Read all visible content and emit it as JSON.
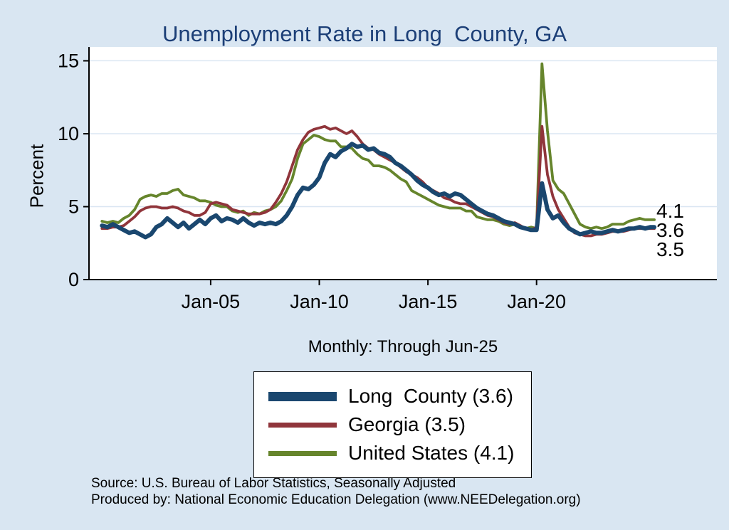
{
  "page": {
    "title": "Unemployment Rate in Long  County, GA",
    "subtitle": "Monthly: Through Jun-25",
    "source_line1": "Source: U.S. Bureau of Labor Statistics, Seasonally Adjusted",
    "source_line2": "Produced by: National Economic Education Delegation (www.NEEDelegation.org)",
    "colors": {
      "background": "#d9e6f2",
      "title": "#1c3f77",
      "plot_background": "#ffffff",
      "gridline": "#d9e5f2",
      "axis": "#000000"
    }
  },
  "chart_data": {
    "type": "line",
    "title": "Unemployment Rate in Long  County, GA",
    "xlabel": "",
    "ylabel": "Percent",
    "x_axis": {
      "ticks": [
        2005,
        2010,
        2015,
        2020
      ],
      "tick_labels": [
        "Jan-05",
        "Jan-10",
        "Jan-15",
        "Jan-20"
      ],
      "range": [
        1999.4,
        2028.3
      ]
    },
    "y_axis": {
      "ticks": [
        0,
        5,
        10,
        15
      ],
      "tick_labels": [
        "0",
        "5",
        "10",
        "15"
      ],
      "range": [
        0,
        15.95
      ],
      "gridlines": [
        5,
        10,
        15
      ]
    },
    "x": [
      2000.0,
      2000.25,
      2000.5,
      2000.75,
      2001.0,
      2001.25,
      2001.5,
      2001.75,
      2002.0,
      2002.25,
      2002.5,
      2002.75,
      2003.0,
      2003.25,
      2003.5,
      2003.75,
      2004.0,
      2004.25,
      2004.5,
      2004.75,
      2005.0,
      2005.25,
      2005.5,
      2005.75,
      2006.0,
      2006.25,
      2006.5,
      2006.75,
      2007.0,
      2007.25,
      2007.5,
      2007.75,
      2008.0,
      2008.25,
      2008.5,
      2008.75,
      2009.0,
      2009.25,
      2009.5,
      2009.75,
      2010.0,
      2010.25,
      2010.5,
      2010.75,
      2011.0,
      2011.25,
      2011.5,
      2011.75,
      2012.0,
      2012.25,
      2012.5,
      2012.75,
      2013.0,
      2013.25,
      2013.5,
      2013.75,
      2014.0,
      2014.25,
      2014.5,
      2014.75,
      2015.0,
      2015.25,
      2015.5,
      2015.75,
      2016.0,
      2016.25,
      2016.5,
      2016.75,
      2017.0,
      2017.25,
      2017.5,
      2017.75,
      2018.0,
      2018.25,
      2018.5,
      2018.75,
      2019.0,
      2019.25,
      2019.5,
      2019.75,
      2020.0,
      2020.25,
      2020.5,
      2020.75,
      2021.0,
      2021.25,
      2021.5,
      2021.75,
      2022.0,
      2022.25,
      2022.5,
      2022.75,
      2023.0,
      2023.25,
      2023.5,
      2023.75,
      2024.0,
      2024.25,
      2024.5,
      2024.75,
      2025.0,
      2025.25,
      2025.42
    ],
    "series": [
      {
        "name": "Long  County",
        "legend_label": "Long  County (3.6)",
        "last_value": 3.6,
        "color": "#1a476f",
        "values": [
          3.7,
          3.6,
          3.8,
          3.6,
          3.4,
          3.2,
          3.3,
          3.1,
          2.9,
          3.1,
          3.6,
          3.8,
          4.2,
          3.9,
          3.6,
          3.9,
          3.5,
          3.8,
          4.1,
          3.8,
          4.2,
          4.4,
          4.0,
          4.2,
          4.1,
          3.9,
          4.2,
          3.9,
          3.7,
          3.9,
          3.8,
          3.9,
          3.8,
          4.0,
          4.4,
          5.0,
          5.8,
          6.3,
          6.2,
          6.5,
          7.0,
          8.0,
          8.6,
          8.4,
          8.8,
          9.0,
          9.3,
          9.1,
          9.2,
          8.9,
          9.0,
          8.7,
          8.6,
          8.4,
          8.0,
          7.8,
          7.5,
          7.2,
          6.8,
          6.5,
          6.3,
          6.0,
          5.8,
          5.9,
          5.7,
          5.9,
          5.8,
          5.5,
          5.2,
          4.9,
          4.7,
          4.5,
          4.4,
          4.2,
          4.0,
          3.9,
          3.8,
          3.6,
          3.5,
          3.4,
          3.4,
          6.6,
          4.8,
          4.2,
          4.4,
          3.9,
          3.5,
          3.3,
          3.1,
          3.2,
          3.3,
          3.2,
          3.2,
          3.3,
          3.4,
          3.3,
          3.4,
          3.5,
          3.5,
          3.6,
          3.5,
          3.6,
          3.6
        ]
      },
      {
        "name": "Georgia",
        "legend_label": "Georgia (3.5)",
        "last_value": 3.5,
        "color": "#90353b",
        "values": [
          3.5,
          3.5,
          3.6,
          3.6,
          3.7,
          4.0,
          4.3,
          4.7,
          4.9,
          5.0,
          5.0,
          4.9,
          4.9,
          5.0,
          4.9,
          4.7,
          4.6,
          4.4,
          4.4,
          4.6,
          5.2,
          5.3,
          5.2,
          5.1,
          4.8,
          4.7,
          4.6,
          4.5,
          4.5,
          4.5,
          4.6,
          4.8,
          5.3,
          5.9,
          6.7,
          7.8,
          8.9,
          9.6,
          10.1,
          10.3,
          10.4,
          10.5,
          10.3,
          10.4,
          10.2,
          10.0,
          10.2,
          9.8,
          9.3,
          9.0,
          8.9,
          8.6,
          8.4,
          8.2,
          8.0,
          7.7,
          7.4,
          7.2,
          7.0,
          6.7,
          6.3,
          6.1,
          5.9,
          5.6,
          5.5,
          5.3,
          5.2,
          5.2,
          5.0,
          4.8,
          4.6,
          4.4,
          4.3,
          4.1,
          3.9,
          3.8,
          3.9,
          3.7,
          3.5,
          3.4,
          3.6,
          10.5,
          7.2,
          5.7,
          4.8,
          4.2,
          3.6,
          3.2,
          3.1,
          3.0,
          3.0,
          3.1,
          3.1,
          3.2,
          3.3,
          3.3,
          3.3,
          3.4,
          3.5,
          3.5,
          3.5,
          3.5,
          3.5
        ]
      },
      {
        "name": "United States",
        "legend_label": "United States (4.1)",
        "last_value": 4.1,
        "color": "#66852c",
        "values": [
          4.0,
          3.9,
          4.0,
          3.9,
          4.2,
          4.4,
          4.8,
          5.5,
          5.7,
          5.8,
          5.7,
          5.9,
          5.9,
          6.1,
          6.2,
          5.8,
          5.7,
          5.6,
          5.4,
          5.4,
          5.3,
          5.1,
          5.0,
          5.0,
          4.7,
          4.6,
          4.7,
          4.4,
          4.6,
          4.5,
          4.7,
          4.8,
          5.0,
          5.4,
          6.1,
          6.9,
          8.3,
          9.3,
          9.6,
          9.9,
          9.8,
          9.6,
          9.5,
          9.5,
          9.1,
          9.1,
          9.0,
          8.6,
          8.3,
          8.2,
          7.8,
          7.8,
          7.7,
          7.5,
          7.2,
          6.9,
          6.7,
          6.1,
          5.9,
          5.7,
          5.5,
          5.3,
          5.1,
          5.0,
          4.9,
          4.9,
          4.9,
          4.7,
          4.7,
          4.3,
          4.2,
          4.1,
          4.1,
          4.0,
          3.8,
          3.7,
          3.8,
          3.6,
          3.5,
          3.6,
          3.5,
          14.8,
          10.2,
          6.8,
          6.2,
          5.9,
          5.2,
          4.5,
          3.8,
          3.6,
          3.5,
          3.6,
          3.5,
          3.6,
          3.8,
          3.8,
          3.8,
          4.0,
          4.1,
          4.2,
          4.1,
          4.1,
          4.1
        ]
      }
    ],
    "end_labels": [
      "4.1",
      "3.6",
      "3.5"
    ],
    "legend_position": "bottom-center",
    "grid": true
  }
}
